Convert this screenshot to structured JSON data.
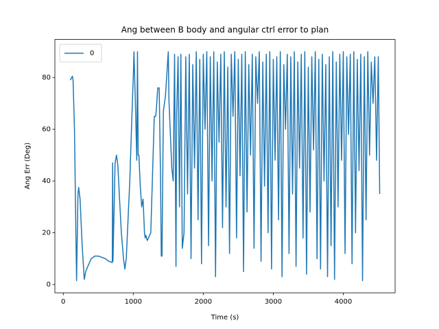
{
  "chart_data": {
    "type": "line",
    "title": "Ang between B body and angular ctrl error to plan",
    "xlabel": "Time (s)",
    "ylabel": "Ang Err (Deg)",
    "xlim": [
      -120,
      4740
    ],
    "ylim": [
      -3.2,
      94.7
    ],
    "xticks": [
      0,
      1000,
      2000,
      3000,
      4000
    ],
    "yticks": [
      0,
      20,
      40,
      60,
      80
    ],
    "legend": "upper left",
    "x": [
      100,
      130,
      140,
      160,
      180,
      190,
      210,
      220,
      240,
      270,
      300,
      320,
      350,
      400,
      450,
      500,
      550,
      600,
      650,
      700,
      705,
      710,
      740,
      760,
      780,
      800,
      830,
      860,
      880,
      900,
      950,
      980,
      1000,
      1010,
      1030,
      1050,
      1060,
      1070,
      1080,
      1100,
      1120,
      1140,
      1160,
      1170,
      1180,
      1200,
      1250,
      1300,
      1320,
      1330,
      1350,
      1370,
      1390,
      1400,
      1410,
      1430,
      1460,
      1500,
      1510,
      1550,
      1570,
      1590,
      1610,
      1620,
      1640,
      1660,
      1680,
      1700,
      1725,
      1750,
      1775,
      1800,
      1825,
      1850,
      1875,
      1900,
      1925,
      1950,
      1975,
      2000,
      2025,
      2050,
      2075,
      2100,
      2125,
      2150,
      2175,
      2200,
      2225,
      2250,
      2275,
      2300,
      2325,
      2350,
      2375,
      2400,
      2425,
      2450,
      2475,
      2500,
      2525,
      2550,
      2575,
      2600,
      2625,
      2650,
      2675,
      2700,
      2725,
      2750,
      2775,
      2800,
      2825,
      2850,
      2875,
      2900,
      2925,
      2950,
      2975,
      3000,
      3025,
      3050,
      3075,
      3100,
      3125,
      3150,
      3175,
      3200,
      3225,
      3250,
      3275,
      3300,
      3325,
      3350,
      3375,
      3400,
      3425,
      3450,
      3475,
      3500,
      3525,
      3550,
      3575,
      3600,
      3625,
      3650,
      3675,
      3700,
      3725,
      3750,
      3775,
      3800,
      3825,
      3850,
      3875,
      3900,
      3925,
      3950,
      3975,
      4000,
      4025,
      4050,
      4075,
      4100,
      4125,
      4150,
      4175,
      4200,
      4225,
      4250,
      4275,
      4300,
      4325,
      4350,
      4375,
      4400,
      4425,
      4450,
      4475,
      4500,
      4520
    ],
    "series": [
      {
        "name": "0",
        "color": "#1f77b4",
        "values": [
          79,
          80.5,
          79,
          60,
          20,
          1.5,
          35,
          37.5,
          33,
          15,
          2,
          5,
          7,
          10,
          11,
          11,
          10.5,
          10,
          9,
          8.5,
          47,
          9,
          47,
          50,
          46,
          35,
          20,
          10,
          6,
          10,
          40,
          65,
          80,
          90,
          70,
          48,
          90,
          50,
          50,
          38,
          30,
          33,
          20,
          18,
          19,
          17,
          20,
          65,
          65,
          68,
          76,
          76,
          40,
          11,
          11,
          67,
          73,
          90,
          71,
          45,
          40,
          89,
          7,
          66,
          88,
          30,
          89,
          14,
          20,
          88,
          35,
          89,
          10,
          85,
          45,
          90,
          25,
          87,
          8,
          89,
          60,
          90,
          15,
          88,
          40,
          90,
          3,
          86,
          55,
          89,
          22,
          90,
          30,
          84,
          12,
          89,
          65,
          90,
          18,
          87,
          42,
          89,
          5,
          90,
          28,
          85,
          50,
          89,
          14,
          88,
          70,
          90,
          9,
          86,
          38,
          89,
          20,
          90,
          6,
          87,
          48,
          88,
          25,
          90,
          3,
          85,
          60,
          89,
          12,
          88,
          35,
          90,
          7,
          86,
          45,
          89,
          18,
          90,
          4,
          84,
          28,
          88,
          52,
          90,
          10,
          87,
          6,
          89,
          40,
          85,
          3,
          88,
          15,
          90,
          2,
          86,
          30,
          89,
          48,
          90,
          12,
          88,
          58,
          89,
          8,
          90,
          20,
          87,
          44,
          89,
          1.5,
          88,
          25,
          90,
          50,
          86,
          70,
          88,
          48,
          88,
          35
        ]
      }
    ]
  }
}
